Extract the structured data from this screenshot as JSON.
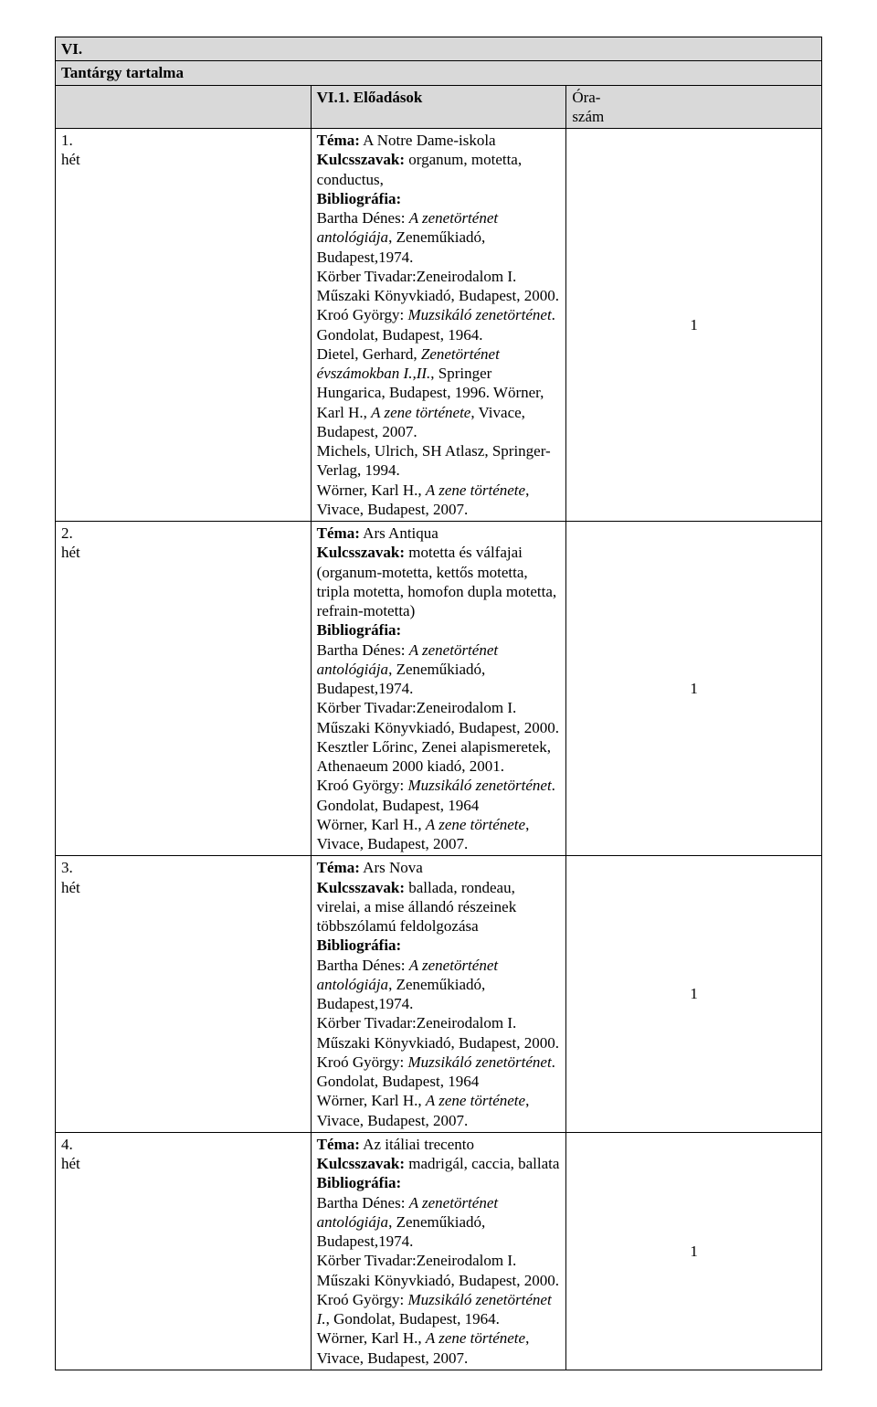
{
  "header": {
    "section_num": "VI.",
    "section_title": "Tantárgy tartalma",
    "sub_num": "VI.1. Előadások",
    "hours_label_l1": "Óra-",
    "hours_label_l2": "szám"
  },
  "labels": {
    "tema": "Téma:",
    "kulcs": "Kulcsszavak:",
    "bib": "Bibliográfia:"
  },
  "rows": [
    {
      "week_l1": "1.",
      "week_l2": "hét",
      "tema": " A Notre Dame-iskola",
      "kulcs": " organum, motetta, conductus,",
      "bib_lines": [
        {
          "pre": "Bartha Dénes: ",
          "it": "A zenetörténet antológiája",
          "post": ", Zeneműkiadó, Budapest,1974."
        },
        {
          "pre": "Körber Tivadar:Zeneirodalom I. Műszaki Könyvkiadó, Budapest, 2000.",
          "it": "",
          "post": ""
        },
        {
          "pre": "Kroó György: ",
          "it": "Muzsikáló zenetörténet",
          "post": ". Gondolat, Budapest, 1964."
        },
        {
          "pre": "Dietel, Gerhard, ",
          "it": "Zenetörténet évszámokban I.,II.",
          "post": ", Springer Hungarica, Budapest, 1996. Wörner, Karl H., "
        },
        {
          "pre": "",
          "it": "A zene története",
          "post": ", Vivace, Budapest, 2007."
        },
        {
          "pre": "Michels, Ulrich, SH Atlasz, Springer-Verlag, 1994.",
          "it": "",
          "post": ""
        },
        {
          "pre": "Wörner, Karl H., ",
          "it": "A zene története",
          "post": ", Vivace, Budapest, 2007."
        }
      ],
      "hours": "1"
    },
    {
      "week_l1": "2.",
      "week_l2": "hét",
      "tema": " Ars Antiqua",
      "kulcs": " motetta és válfajai (organum-motetta, kettős motetta, tripla motetta, homofon dupla motetta, refrain-motetta)",
      "bib_lines": [
        {
          "pre": "Bartha Dénes: ",
          "it": "A zenetörténet antológiája",
          "post": ", Zeneműkiadó, Budapest,1974."
        },
        {
          "pre": "Körber Tivadar:Zeneirodalom I. Műszaki Könyvkiadó, Budapest, 2000.",
          "it": "",
          "post": ""
        },
        {
          "pre": "Kesztler Lőrinc, Zenei alapismeretek, Athenaeum 2000 kiadó, 2001.",
          "it": "",
          "post": ""
        },
        {
          "pre": "Kroó György: ",
          "it": "Muzsikáló zenetörténet",
          "post": ". Gondolat, Budapest, 1964"
        },
        {
          "pre": "Wörner, Karl H., ",
          "it": "A zene története",
          "post": ", Vivace, Budapest, 2007."
        }
      ],
      "hours": "1"
    },
    {
      "week_l1": "3.",
      "week_l2": "hét",
      "tema": " Ars Nova",
      "kulcs": " ballada, rondeau, virelai, a mise állandó részeinek többszólamú feldolgozása",
      "bib_lines": [
        {
          "pre": "Bartha Dénes: ",
          "it": "A zenetörténet antológiája",
          "post": ", Zeneműkiadó, Budapest,1974."
        },
        {
          "pre": "Körber Tivadar:Zeneirodalom I. Műszaki Könyvkiadó, Budapest, 2000.",
          "it": "",
          "post": ""
        },
        {
          "pre": "Kroó György: ",
          "it": "Muzsikáló zenetörténet",
          "post": ". Gondolat, Budapest, 1964"
        },
        {
          "pre": "Wörner, Karl H., ",
          "it": "A zene története",
          "post": ", Vivace, Budapest, 2007."
        }
      ],
      "hours": "1"
    },
    {
      "week_l1": "4.",
      "week_l2": "hét",
      "tema": " Az itáliai trecento",
      "kulcs": " madrigál, caccia, ballata",
      "bib_lines": [
        {
          "pre": "Bartha Dénes: ",
          "it": "A zenetörténet antológiája",
          "post": ", Zeneműkiadó, Budapest,1974."
        },
        {
          "pre": "Körber Tivadar:Zeneirodalom I. Műszaki Könyvkiadó, Budapest, 2000.",
          "it": "",
          "post": ""
        },
        {
          "pre": "Kroó György: ",
          "it": "Muzsikáló zenetörténet I.",
          "post": ", Gondolat, Budapest, 1964."
        },
        {
          "pre": "Wörner, Karl H., ",
          "it": "A zene története",
          "post": ", Vivace, Budapest, 2007."
        }
      ],
      "hours": "1"
    }
  ]
}
